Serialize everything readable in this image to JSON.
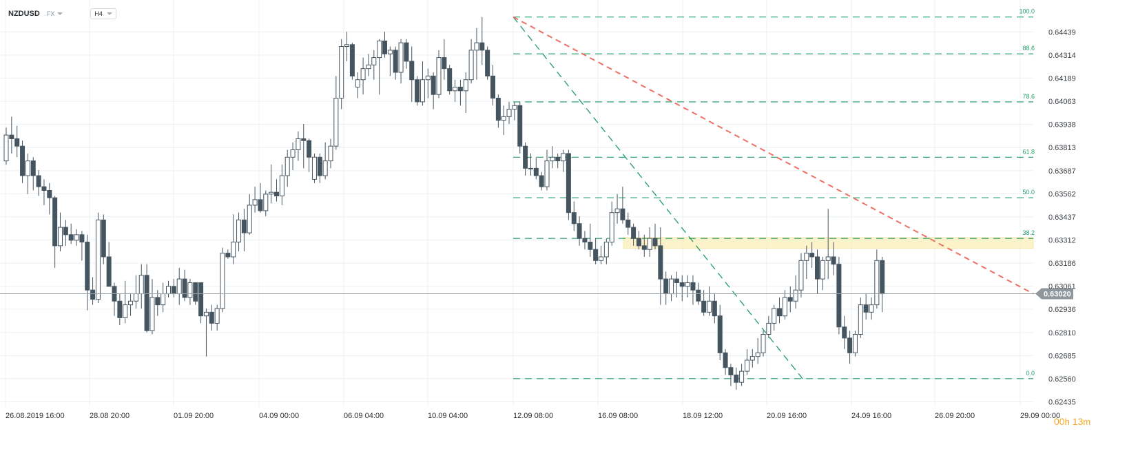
{
  "header": {
    "symbol": "NZDUSD",
    "market": "FX",
    "timeframe": "H4"
  },
  "timer": {
    "hours": "00",
    "h": "h",
    "minutes": "13",
    "m": "m"
  },
  "colors": {
    "bear": "#455560",
    "bull": "#ffffff",
    "fib": "#1f9d6a",
    "trend": "#ef6f64",
    "zone": "#fbefb9",
    "price_line": "#9aa2a8",
    "price_tag": "#8e979d",
    "grid": "#eceff1"
  },
  "chart_data": {
    "type": "candlestick",
    "instrument": "NZDUSD",
    "timeframe": "H4",
    "x_labels": [
      "26.08.2019  16:00",
      "28.08  20:00",
      "01.09  20:00",
      "04.09  00:00",
      "06.09  04:00",
      "10.09  04:00",
      "12.09  08:00",
      "16.09  08:00",
      "18.09  12:00",
      "20.09  16:00",
      "24.09  16:00",
      "26.09  20:00",
      "29.09  00:00"
    ],
    "y_ticks": [
      "0.64439",
      "0.64314",
      "0.64189",
      "0.64063",
      "0.63938",
      "0.63813",
      "0.63687",
      "0.63562",
      "0.63437",
      "0.63312",
      "0.63186",
      "0.63061",
      "0.62936",
      "0.62810",
      "0.62685",
      "0.62560",
      "0.62435"
    ],
    "ylim": [
      0.6241,
      0.645
    ],
    "current_price": "0.63020",
    "fibonacci": {
      "levels": [
        {
          "label": "100.0",
          "price": 0.6452
        },
        {
          "label": "88.6",
          "price": 0.6432
        },
        {
          "label": "78.6",
          "price": 0.6406
        },
        {
          "label": "61.8",
          "price": 0.6376
        },
        {
          "label": "50.0",
          "price": 0.6354
        },
        {
          "label": "38.2",
          "price": 0.6332
        },
        {
          "label": "0.0",
          "price": 0.6256
        }
      ]
    },
    "resistance_zone": {
      "low": 0.63265,
      "high": 0.63325
    },
    "candles": [
      {
        "o": 0.6374,
        "h": 0.6392,
        "l": 0.6372,
        "c": 0.6388
      },
      {
        "o": 0.6388,
        "h": 0.6398,
        "l": 0.6378,
        "c": 0.6386
      },
      {
        "o": 0.6386,
        "h": 0.6393,
        "l": 0.6376,
        "c": 0.6382
      },
      {
        "o": 0.6382,
        "h": 0.6385,
        "l": 0.6362,
        "c": 0.6366
      },
      {
        "o": 0.6366,
        "h": 0.6378,
        "l": 0.6356,
        "c": 0.6374
      },
      {
        "o": 0.6374,
        "h": 0.6376,
        "l": 0.6358,
        "c": 0.6366
      },
      {
        "o": 0.6366,
        "h": 0.6369,
        "l": 0.6355,
        "c": 0.636
      },
      {
        "o": 0.636,
        "h": 0.6364,
        "l": 0.635,
        "c": 0.6358
      },
      {
        "o": 0.6358,
        "h": 0.6362,
        "l": 0.6345,
        "c": 0.6354
      },
      {
        "o": 0.6354,
        "h": 0.6355,
        "l": 0.6316,
        "c": 0.6328
      },
      {
        "o": 0.6328,
        "h": 0.6346,
        "l": 0.6325,
        "c": 0.6338
      },
      {
        "o": 0.6338,
        "h": 0.6342,
        "l": 0.6328,
        "c": 0.6334
      },
      {
        "o": 0.6334,
        "h": 0.634,
        "l": 0.6329,
        "c": 0.6331
      },
      {
        "o": 0.6331,
        "h": 0.6337,
        "l": 0.6328,
        "c": 0.6334
      },
      {
        "o": 0.6334,
        "h": 0.6336,
        "l": 0.632,
        "c": 0.633
      },
      {
        "o": 0.633,
        "h": 0.6334,
        "l": 0.6293,
        "c": 0.6304
      },
      {
        "o": 0.6304,
        "h": 0.6311,
        "l": 0.6296,
        "c": 0.6299
      },
      {
        "o": 0.6299,
        "h": 0.6346,
        "l": 0.6297,
        "c": 0.6342
      },
      {
        "o": 0.6342,
        "h": 0.6345,
        "l": 0.6318,
        "c": 0.6322
      },
      {
        "o": 0.6322,
        "h": 0.633,
        "l": 0.6306,
        "c": 0.6306
      },
      {
        "o": 0.6306,
        "h": 0.6308,
        "l": 0.629,
        "c": 0.6298
      },
      {
        "o": 0.6298,
        "h": 0.6302,
        "l": 0.6285,
        "c": 0.6289
      },
      {
        "o": 0.6289,
        "h": 0.6309,
        "l": 0.6286,
        "c": 0.6296
      },
      {
        "o": 0.6296,
        "h": 0.6302,
        "l": 0.629,
        "c": 0.6298
      },
      {
        "o": 0.6298,
        "h": 0.6312,
        "l": 0.6294,
        "c": 0.6302
      },
      {
        "o": 0.6302,
        "h": 0.6318,
        "l": 0.6294,
        "c": 0.6312
      },
      {
        "o": 0.6312,
        "h": 0.6318,
        "l": 0.6281,
        "c": 0.6282
      },
      {
        "o": 0.6282,
        "h": 0.631,
        "l": 0.628,
        "c": 0.63
      },
      {
        "o": 0.63,
        "h": 0.6304,
        "l": 0.629,
        "c": 0.6296
      },
      {
        "o": 0.6296,
        "h": 0.6308,
        "l": 0.6292,
        "c": 0.6302
      },
      {
        "o": 0.6302,
        "h": 0.6309,
        "l": 0.63,
        "c": 0.6306
      },
      {
        "o": 0.6306,
        "h": 0.631,
        "l": 0.63,
        "c": 0.6302
      },
      {
        "o": 0.6302,
        "h": 0.6316,
        "l": 0.6296,
        "c": 0.631
      },
      {
        "o": 0.631,
        "h": 0.6315,
        "l": 0.6298,
        "c": 0.63
      },
      {
        "o": 0.63,
        "h": 0.631,
        "l": 0.6296,
        "c": 0.6308
      },
      {
        "o": 0.6308,
        "h": 0.6308,
        "l": 0.6296,
        "c": 0.6298
      },
      {
        "o": 0.6308,
        "h": 0.6308,
        "l": 0.6286,
        "c": 0.629
      },
      {
        "o": 0.629,
        "h": 0.6294,
        "l": 0.6268,
        "c": 0.6292
      },
      {
        "o": 0.6292,
        "h": 0.6296,
        "l": 0.6282,
        "c": 0.6286
      },
      {
        "o": 0.6286,
        "h": 0.6296,
        "l": 0.6282,
        "c": 0.6294
      },
      {
        "o": 0.6294,
        "h": 0.6327,
        "l": 0.6292,
        "c": 0.6324
      },
      {
        "o": 0.6324,
        "h": 0.6326,
        "l": 0.6321,
        "c": 0.6322
      },
      {
        "o": 0.6322,
        "h": 0.6345,
        "l": 0.6318,
        "c": 0.633
      },
      {
        "o": 0.633,
        "h": 0.6346,
        "l": 0.6325,
        "c": 0.6342
      },
      {
        "o": 0.6342,
        "h": 0.6348,
        "l": 0.6325,
        "c": 0.6335
      },
      {
        "o": 0.6335,
        "h": 0.6356,
        "l": 0.6334,
        "c": 0.635
      },
      {
        "o": 0.635,
        "h": 0.636,
        "l": 0.6346,
        "c": 0.6353
      },
      {
        "o": 0.6353,
        "h": 0.6362,
        "l": 0.6346,
        "c": 0.6347
      },
      {
        "o": 0.6347,
        "h": 0.6358,
        "l": 0.6344,
        "c": 0.6356
      },
      {
        "o": 0.6356,
        "h": 0.6372,
        "l": 0.6351,
        "c": 0.6357
      },
      {
        "o": 0.6357,
        "h": 0.6364,
        "l": 0.6352,
        "c": 0.6355
      },
      {
        "o": 0.6355,
        "h": 0.6372,
        "l": 0.635,
        "c": 0.6366
      },
      {
        "o": 0.6366,
        "h": 0.638,
        "l": 0.636,
        "c": 0.6376
      },
      {
        "o": 0.6376,
        "h": 0.6384,
        "l": 0.6369,
        "c": 0.638
      },
      {
        "o": 0.638,
        "h": 0.639,
        "l": 0.6374,
        "c": 0.6386
      },
      {
        "o": 0.6386,
        "h": 0.6394,
        "l": 0.637,
        "c": 0.6385
      },
      {
        "o": 0.6385,
        "h": 0.6386,
        "l": 0.6368,
        "c": 0.6376
      },
      {
        "o": 0.6364,
        "h": 0.6378,
        "l": 0.6362,
        "c": 0.6376
      },
      {
        "o": 0.6376,
        "h": 0.6378,
        "l": 0.6362,
        "c": 0.6366
      },
      {
        "o": 0.6366,
        "h": 0.6384,
        "l": 0.6364,
        "c": 0.6374
      },
      {
        "o": 0.6374,
        "h": 0.6386,
        "l": 0.637,
        "c": 0.6382
      },
      {
        "o": 0.6382,
        "h": 0.642,
        "l": 0.638,
        "c": 0.6408
      },
      {
        "o": 0.6408,
        "h": 0.644,
        "l": 0.6402,
        "c": 0.6436
      },
      {
        "o": 0.6436,
        "h": 0.6444,
        "l": 0.6428,
        "c": 0.6437
      },
      {
        "o": 0.6437,
        "h": 0.6438,
        "l": 0.6418,
        "c": 0.642
      },
      {
        "o": 0.6414,
        "h": 0.6422,
        "l": 0.6408,
        "c": 0.6418
      },
      {
        "o": 0.6418,
        "h": 0.643,
        "l": 0.641,
        "c": 0.6424
      },
      {
        "o": 0.6424,
        "h": 0.6432,
        "l": 0.642,
        "c": 0.6426
      },
      {
        "o": 0.6426,
        "h": 0.6434,
        "l": 0.6418,
        "c": 0.643
      },
      {
        "o": 0.643,
        "h": 0.644,
        "l": 0.641,
        "c": 0.6439
      },
      {
        "o": 0.6439,
        "h": 0.6444,
        "l": 0.643,
        "c": 0.6432
      },
      {
        "o": 0.6432,
        "h": 0.6436,
        "l": 0.642,
        "c": 0.6434
      },
      {
        "o": 0.6434,
        "h": 0.6436,
        "l": 0.6418,
        "c": 0.6422
      },
      {
        "o": 0.6422,
        "h": 0.644,
        "l": 0.6416,
        "c": 0.6438
      },
      {
        "o": 0.6438,
        "h": 0.644,
        "l": 0.6424,
        "c": 0.6428
      },
      {
        "o": 0.6428,
        "h": 0.6436,
        "l": 0.6406,
        "c": 0.6418
      },
      {
        "o": 0.6418,
        "h": 0.642,
        "l": 0.6404,
        "c": 0.6406
      },
      {
        "o": 0.6406,
        "h": 0.6428,
        "l": 0.6404,
        "c": 0.6418
      },
      {
        "o": 0.6418,
        "h": 0.6424,
        "l": 0.6408,
        "c": 0.642
      },
      {
        "o": 0.642,
        "h": 0.6422,
        "l": 0.6402,
        "c": 0.641
      },
      {
        "o": 0.641,
        "h": 0.6434,
        "l": 0.6408,
        "c": 0.643
      },
      {
        "o": 0.643,
        "h": 0.644,
        "l": 0.6418,
        "c": 0.6424
      },
      {
        "o": 0.6424,
        "h": 0.6426,
        "l": 0.641,
        "c": 0.6412
      },
      {
        "o": 0.6412,
        "h": 0.6418,
        "l": 0.6406,
        "c": 0.6414
      },
      {
        "o": 0.6414,
        "h": 0.6418,
        "l": 0.6404,
        "c": 0.6412
      },
      {
        "o": 0.6412,
        "h": 0.6422,
        "l": 0.64,
        "c": 0.6418
      },
      {
        "o": 0.6418,
        "h": 0.644,
        "l": 0.6416,
        "c": 0.6434
      },
      {
        "o": 0.6434,
        "h": 0.6446,
        "l": 0.6418,
        "c": 0.6438
      },
      {
        "o": 0.6438,
        "h": 0.6452,
        "l": 0.6426,
        "c": 0.6434
      },
      {
        "o": 0.6434,
        "h": 0.6436,
        "l": 0.6418,
        "c": 0.642
      },
      {
        "o": 0.642,
        "h": 0.6426,
        "l": 0.6404,
        "c": 0.6408
      },
      {
        "o": 0.6408,
        "h": 0.641,
        "l": 0.6392,
        "c": 0.6396
      },
      {
        "o": 0.6396,
        "h": 0.6404,
        "l": 0.6388,
        "c": 0.6398
      },
      {
        "o": 0.6398,
        "h": 0.6406,
        "l": 0.6394,
        "c": 0.6402
      },
      {
        "o": 0.6402,
        "h": 0.6406,
        "l": 0.6396,
        "c": 0.6404
      },
      {
        "o": 0.6404,
        "h": 0.6406,
        "l": 0.6378,
        "c": 0.6382
      },
      {
        "o": 0.6382,
        "h": 0.6384,
        "l": 0.6366,
        "c": 0.637
      },
      {
        "o": 0.637,
        "h": 0.6378,
        "l": 0.6366,
        "c": 0.637
      },
      {
        "o": 0.637,
        "h": 0.6376,
        "l": 0.6364,
        "c": 0.6366
      },
      {
        "o": 0.6366,
        "h": 0.6368,
        "l": 0.6358,
        "c": 0.636
      },
      {
        "o": 0.636,
        "h": 0.638,
        "l": 0.6358,
        "c": 0.6374
      },
      {
        "o": 0.6374,
        "h": 0.6382,
        "l": 0.637,
        "c": 0.6376
      },
      {
        "o": 0.6376,
        "h": 0.6378,
        "l": 0.637,
        "c": 0.6374
      },
      {
        "o": 0.6374,
        "h": 0.638,
        "l": 0.6368,
        "c": 0.6378
      },
      {
        "o": 0.6378,
        "h": 0.638,
        "l": 0.6342,
        "c": 0.6346
      },
      {
        "o": 0.6346,
        "h": 0.6352,
        "l": 0.6336,
        "c": 0.634
      },
      {
        "o": 0.634,
        "h": 0.6344,
        "l": 0.6328,
        "c": 0.6332
      },
      {
        "o": 0.6332,
        "h": 0.6336,
        "l": 0.6326,
        "c": 0.633
      },
      {
        "o": 0.633,
        "h": 0.634,
        "l": 0.6322,
        "c": 0.6326
      },
      {
        "o": 0.6326,
        "h": 0.6332,
        "l": 0.6318,
        "c": 0.632
      },
      {
        "o": 0.632,
        "h": 0.6328,
        "l": 0.6318,
        "c": 0.6322
      },
      {
        "o": 0.6322,
        "h": 0.6332,
        "l": 0.6318,
        "c": 0.633
      },
      {
        "o": 0.633,
        "h": 0.6352,
        "l": 0.6328,
        "c": 0.6346
      },
      {
        "o": 0.6346,
        "h": 0.6356,
        "l": 0.634,
        "c": 0.6348
      },
      {
        "o": 0.6348,
        "h": 0.636,
        "l": 0.634,
        "c": 0.6342
      },
      {
        "o": 0.6342,
        "h": 0.6346,
        "l": 0.6334,
        "c": 0.6338
      },
      {
        "o": 0.6338,
        "h": 0.634,
        "l": 0.6328,
        "c": 0.6332
      },
      {
        "o": 0.6332,
        "h": 0.6336,
        "l": 0.6326,
        "c": 0.6328
      },
      {
        "o": 0.6328,
        "h": 0.6334,
        "l": 0.6322,
        "c": 0.6326
      },
      {
        "o": 0.6326,
        "h": 0.6338,
        "l": 0.6322,
        "c": 0.6332
      },
      {
        "o": 0.6332,
        "h": 0.634,
        "l": 0.6326,
        "c": 0.6328
      },
      {
        "o": 0.6328,
        "h": 0.6338,
        "l": 0.6296,
        "c": 0.631
      },
      {
        "o": 0.631,
        "h": 0.6314,
        "l": 0.6296,
        "c": 0.6302
      },
      {
        "o": 0.6302,
        "h": 0.6312,
        "l": 0.6298,
        "c": 0.631
      },
      {
        "o": 0.631,
        "h": 0.6314,
        "l": 0.63,
        "c": 0.6308
      },
      {
        "o": 0.6308,
        "h": 0.6312,
        "l": 0.6298,
        "c": 0.6306
      },
      {
        "o": 0.6306,
        "h": 0.6312,
        "l": 0.63,
        "c": 0.6308
      },
      {
        "o": 0.6308,
        "h": 0.6312,
        "l": 0.6296,
        "c": 0.6304
      },
      {
        "o": 0.6304,
        "h": 0.6308,
        "l": 0.6296,
        "c": 0.6298
      },
      {
        "o": 0.6298,
        "h": 0.6304,
        "l": 0.629,
        "c": 0.6292
      },
      {
        "o": 0.6292,
        "h": 0.6306,
        "l": 0.629,
        "c": 0.6298
      },
      {
        "o": 0.6298,
        "h": 0.6302,
        "l": 0.6286,
        "c": 0.629
      },
      {
        "o": 0.629,
        "h": 0.6296,
        "l": 0.6266,
        "c": 0.627
      },
      {
        "o": 0.627,
        "h": 0.6272,
        "l": 0.6258,
        "c": 0.6262
      },
      {
        "o": 0.6262,
        "h": 0.6264,
        "l": 0.6252,
        "c": 0.6258
      },
      {
        "o": 0.6258,
        "h": 0.6262,
        "l": 0.625,
        "c": 0.6254
      },
      {
        "o": 0.6254,
        "h": 0.6264,
        "l": 0.6252,
        "c": 0.626
      },
      {
        "o": 0.626,
        "h": 0.6272,
        "l": 0.6258,
        "c": 0.6266
      },
      {
        "o": 0.6266,
        "h": 0.6272,
        "l": 0.6262,
        "c": 0.6268
      },
      {
        "o": 0.6268,
        "h": 0.6278,
        "l": 0.6264,
        "c": 0.627
      },
      {
        "o": 0.627,
        "h": 0.6282,
        "l": 0.6268,
        "c": 0.628
      },
      {
        "o": 0.628,
        "h": 0.629,
        "l": 0.6278,
        "c": 0.6286
      },
      {
        "o": 0.6286,
        "h": 0.6296,
        "l": 0.6282,
        "c": 0.6294
      },
      {
        "o": 0.6294,
        "h": 0.63,
        "l": 0.6286,
        "c": 0.629
      },
      {
        "o": 0.629,
        "h": 0.6304,
        "l": 0.6288,
        "c": 0.63
      },
      {
        "o": 0.63,
        "h": 0.6306,
        "l": 0.6292,
        "c": 0.6298
      },
      {
        "o": 0.6298,
        "h": 0.6312,
        "l": 0.6294,
        "c": 0.6304
      },
      {
        "o": 0.6304,
        "h": 0.6324,
        "l": 0.63,
        "c": 0.632
      },
      {
        "o": 0.632,
        "h": 0.6328,
        "l": 0.631,
        "c": 0.6324
      },
      {
        "o": 0.6324,
        "h": 0.633,
        "l": 0.6316,
        "c": 0.6322
      },
      {
        "o": 0.6322,
        "h": 0.6326,
        "l": 0.6302,
        "c": 0.631
      },
      {
        "o": 0.631,
        "h": 0.6322,
        "l": 0.6304,
        "c": 0.632
      },
      {
        "o": 0.632,
        "h": 0.6348,
        "l": 0.631,
        "c": 0.6322
      },
      {
        "o": 0.6322,
        "h": 0.633,
        "l": 0.6312,
        "c": 0.6318
      },
      {
        "o": 0.6318,
        "h": 0.6322,
        "l": 0.628,
        "c": 0.6284
      },
      {
        "o": 0.6284,
        "h": 0.629,
        "l": 0.6272,
        "c": 0.6278
      },
      {
        "o": 0.6278,
        "h": 0.6282,
        "l": 0.6264,
        "c": 0.627
      },
      {
        "o": 0.627,
        "h": 0.6282,
        "l": 0.6268,
        "c": 0.628
      },
      {
        "o": 0.628,
        "h": 0.63,
        "l": 0.6278,
        "c": 0.6296
      },
      {
        "o": 0.6296,
        "h": 0.6302,
        "l": 0.6288,
        "c": 0.6292
      },
      {
        "o": 0.6292,
        "h": 0.63,
        "l": 0.6288,
        "c": 0.6296
      },
      {
        "o": 0.6296,
        "h": 0.6326,
        "l": 0.6294,
        "c": 0.632
      },
      {
        "o": 0.632,
        "h": 0.6322,
        "l": 0.6292,
        "c": 0.6302
      }
    ]
  }
}
